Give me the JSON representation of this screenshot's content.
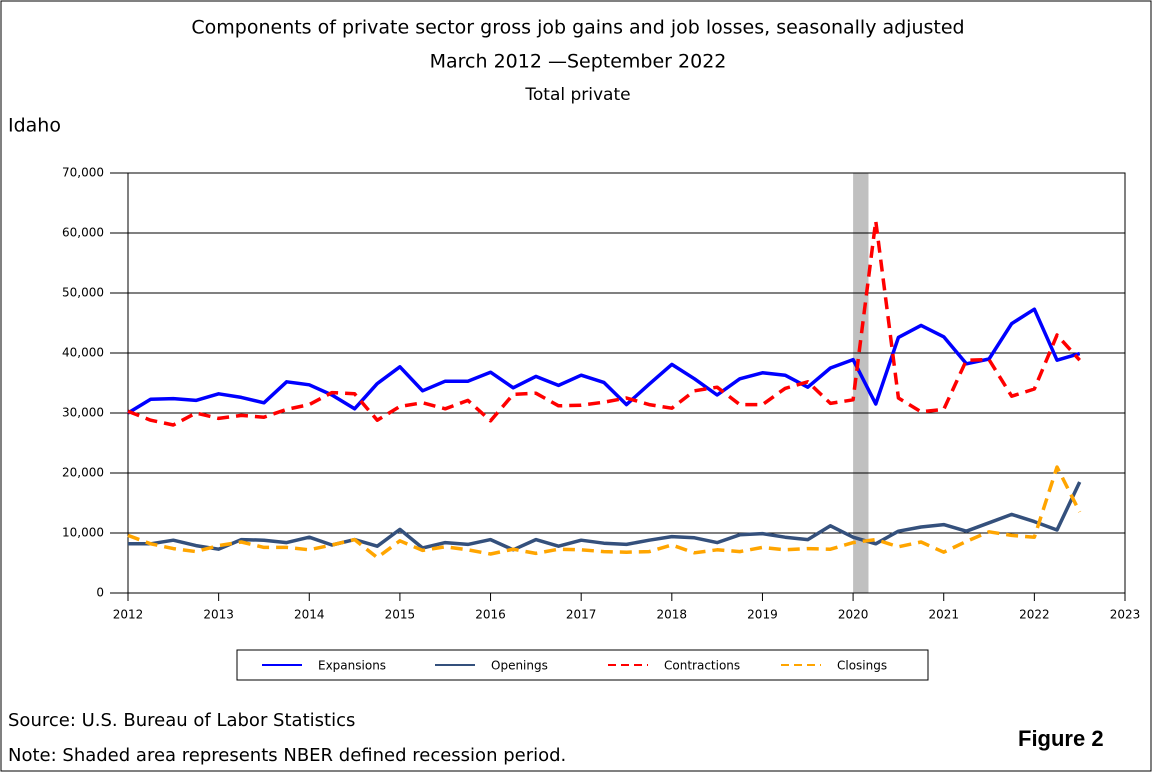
{
  "chart_data": {
    "type": "line",
    "title": "Components of private sector gross job gains and job losses, seasonally adjusted",
    "subtitle": "March 2012 —September 2022",
    "subtitle2": "Total private",
    "region": "Idaho",
    "x": [
      2012,
      2012.25,
      2012.5,
      2012.75,
      2013,
      2013.25,
      2013.5,
      2013.75,
      2014,
      2014.25,
      2014.5,
      2014.75,
      2015,
      2015.25,
      2015.5,
      2015.75,
      2016,
      2016.25,
      2016.5,
      2016.75,
      2017,
      2017.25,
      2017.5,
      2017.75,
      2018,
      2018.25,
      2018.5,
      2018.75,
      2019,
      2019.25,
      2019.5,
      2019.75,
      2020,
      2020.25,
      2020.5,
      2020.75,
      2021,
      2021.25,
      2021.5,
      2021.75,
      2022,
      2022.25,
      2022.5
    ],
    "series": [
      {
        "name": "Expansions",
        "color": "#0000ff",
        "dashed": false,
        "values": [
          30000,
          32300,
          32400,
          32100,
          33200,
          32600,
          31700,
          35200,
          34700,
          33000,
          30700,
          34900,
          37700,
          33700,
          35300,
          35300,
          36800,
          34200,
          36100,
          34600,
          36300,
          35100,
          31400,
          34800,
          38100,
          35700,
          33000,
          35700,
          36700,
          36300,
          34300,
          37500,
          38900,
          31500,
          42600,
          44600,
          42700,
          38200,
          39000,
          44900,
          47300,
          38800,
          39900
        ]
      },
      {
        "name": "Openings",
        "color": "#34507c",
        "dashed": false,
        "values": [
          8200,
          8200,
          8800,
          7900,
          7300,
          8900,
          8800,
          8400,
          9300,
          8000,
          8900,
          7800,
          10600,
          7500,
          8400,
          8100,
          8900,
          7200,
          8900,
          7800,
          8800,
          8300,
          8100,
          8800,
          9400,
          9200,
          8400,
          9700,
          9900,
          9300,
          8900,
          11200,
          9300,
          8200,
          10300,
          11000,
          11400,
          10300,
          11700,
          13100,
          11900,
          10500,
          18500
        ]
      },
      {
        "name": "Contractions",
        "color": "#ff0000",
        "dashed": true,
        "values": [
          30300,
          28800,
          28000,
          30000,
          29100,
          29600,
          29300,
          30600,
          31400,
          33400,
          33200,
          28800,
          31100,
          31700,
          30700,
          32100,
          28700,
          33100,
          33300,
          31200,
          31300,
          31800,
          32500,
          31400,
          30800,
          33700,
          34300,
          31400,
          31400,
          34100,
          35200,
          31600,
          32200,
          62000,
          32500,
          30200,
          30600,
          38800,
          38900,
          32800,
          34000,
          43000,
          38800
        ]
      },
      {
        "name": "Closings",
        "color": "#ffa500",
        "dashed": true,
        "values": [
          9600,
          8200,
          7400,
          6900,
          7900,
          8500,
          7600,
          7600,
          7200,
          8000,
          8900,
          5900,
          8700,
          7100,
          7700,
          7200,
          6500,
          7300,
          6600,
          7300,
          7200,
          6900,
          6800,
          6900,
          8000,
          6700,
          7200,
          6900,
          7600,
          7200,
          7400,
          7300,
          8400,
          8900,
          7700,
          8500,
          6800,
          8600,
          10200,
          9600,
          9300,
          21000,
          13500
        ]
      }
    ],
    "xlim": [
      2012,
      2023
    ],
    "xticks": [
      2012,
      2013,
      2014,
      2015,
      2016,
      2017,
      2018,
      2019,
      2020,
      2021,
      2022,
      2023
    ],
    "ylim": [
      0,
      70000
    ],
    "yticks": [
      0,
      {
        "value": 10000,
        "label": "10,000"
      },
      {
        "value": 20000,
        "label": "20,000"
      },
      {
        "value": 30000,
        "label": "30,000"
      },
      {
        "value": 40000,
        "label": "40,000"
      },
      {
        "value": 50000,
        "label": "50,000"
      },
      {
        "value": 60000,
        "label": "60,000"
      },
      {
        "value": 70000,
        "label": "70,000"
      }
    ],
    "grid": true,
    "shaded_region": {
      "x": [
        2020,
        2020.17
      ],
      "color": "#c0c0c0"
    },
    "legend": "bottom",
    "source": "Source: U.S. Bureau of Labor Statistics",
    "note": "Note: Shaded area represents NBER defined recession period.",
    "figure_label": "Figure 2"
  }
}
